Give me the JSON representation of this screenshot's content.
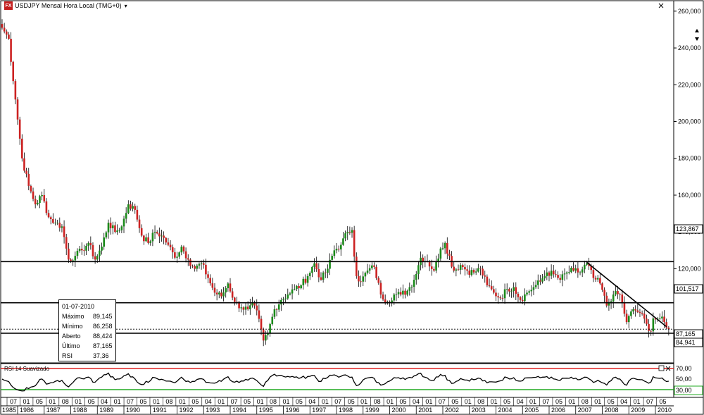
{
  "window": {
    "logo_text": "FX",
    "title": "USDJPY Mensal Hora Local (TMG+0)",
    "menu_arrow": "▾",
    "close_icon": "close-icon",
    "scroll_up_icon": "arrow-up-icon"
  },
  "infobox": {
    "date": "01-07-2010",
    "rows": [
      {
        "label": "Máximo",
        "value": "89,145"
      },
      {
        "label": "Mínimo",
        "value": "86,258"
      },
      {
        "label": "Aberto",
        "value": "88,424"
      },
      {
        "label": "Último",
        "value": "87,165"
      },
      {
        "label": "RSI",
        "value": "37,36"
      }
    ]
  },
  "rsi_panel": {
    "title": "RSI 14 Suavizado",
    "levels": [
      70,
      30
    ],
    "level_labels": [
      "70,00",
      "50,00",
      "30,00"
    ],
    "upper_color": "#dd2222",
    "lower_color": "#22aa22"
  },
  "price_labels": {
    "r1": "123,867",
    "r2": "101,517",
    "last": "87,165",
    "s1": "84,941"
  },
  "chart_data": {
    "type": "candlestick",
    "title": "USDJPY Mensal Hora Local (TMG+0)",
    "ylim": [
      70,
      263
    ],
    "yticks": [
      120,
      140,
      160,
      180,
      200,
      220,
      240,
      260
    ],
    "ytick_labels": [
      "120,000",
      "140,000",
      "160,000",
      "180,000",
      "200,000",
      "220,000",
      "240,000",
      "260,000"
    ],
    "grid": false,
    "horizontal_lines": [
      123.867,
      101.517,
      84.941
    ],
    "last_price_line": 87.165,
    "trendline": {
      "from": [
        "2007-06",
        123.5
      ],
      "to": [
        "2010-06",
        88.5
      ]
    },
    "x_start": "1985-06",
    "x_end": "2010-08",
    "x_years": [
      "1985",
      "1986",
      "1987",
      "1988",
      "1989",
      "1990",
      "1991",
      "1992",
      "1993",
      "1994",
      "1995",
      "1996",
      "1997",
      "1998",
      "1999",
      "2000",
      "2001",
      "2002",
      "2003",
      "2004",
      "2005",
      "2006",
      "2007",
      "2008",
      "2009",
      "2010"
    ],
    "x_month_ticks": [
      "07",
      "01",
      "05",
      "01",
      "08",
      "01",
      "05",
      "04",
      "01",
      "07",
      "05",
      "01",
      "08",
      "01",
      "05",
      "04",
      "01",
      "07",
      "05",
      "01",
      "08",
      "01",
      "05",
      "04",
      "01",
      "07",
      "05",
      "01",
      "08",
      "01",
      "05",
      "04",
      "01",
      "07",
      "05",
      "01",
      "08",
      "01",
      "05",
      "04",
      "01",
      "07",
      "05",
      "01",
      "08",
      "01",
      "05",
      "04",
      "01",
      "07",
      "05"
    ],
    "close_anchors": [
      [
        "1985-06",
        251
      ],
      [
        "1985-09",
        245
      ],
      [
        "1985-12",
        212
      ],
      [
        "1986-03",
        180
      ],
      [
        "1986-06",
        165
      ],
      [
        "1986-09",
        155
      ],
      [
        "1986-12",
        160
      ],
      [
        "1987-03",
        148
      ],
      [
        "1987-06",
        145
      ],
      [
        "1987-09",
        143
      ],
      [
        "1987-12",
        125
      ],
      [
        "1988-03",
        127
      ],
      [
        "1988-06",
        130
      ],
      [
        "1988-09",
        134
      ],
      [
        "1988-12",
        125
      ],
      [
        "1989-03",
        132
      ],
      [
        "1989-06",
        145
      ],
      [
        "1989-09",
        140
      ],
      [
        "1989-12",
        143
      ],
      [
        "1990-03",
        155
      ],
      [
        "1990-06",
        152
      ],
      [
        "1990-09",
        138
      ],
      [
        "1990-12",
        134
      ],
      [
        "1991-03",
        140
      ],
      [
        "1991-06",
        138
      ],
      [
        "1991-09",
        133
      ],
      [
        "1991-12",
        126
      ],
      [
        "1992-03",
        132
      ],
      [
        "1992-06",
        125
      ],
      [
        "1992-09",
        120
      ],
      [
        "1992-12",
        123
      ],
      [
        "1993-03",
        115
      ],
      [
        "1993-06",
        107
      ],
      [
        "1993-09",
        105
      ],
      [
        "1993-12",
        112
      ],
      [
        "1994-03",
        102
      ],
      [
        "1994-06",
        99
      ],
      [
        "1994-09",
        98
      ],
      [
        "1994-12",
        100
      ],
      [
        "1995-03",
        87
      ],
      [
        "1995-04",
        81
      ],
      [
        "1995-06",
        85
      ],
      [
        "1995-09",
        98
      ],
      [
        "1995-12",
        103
      ],
      [
        "1996-03",
        106
      ],
      [
        "1996-06",
        109
      ],
      [
        "1996-09",
        111
      ],
      [
        "1996-12",
        116
      ],
      [
        "1997-03",
        123
      ],
      [
        "1997-06",
        114
      ],
      [
        "1997-09",
        120
      ],
      [
        "1997-12",
        130
      ],
      [
        "1998-03",
        133
      ],
      [
        "1998-06",
        140
      ],
      [
        "1998-08",
        141
      ],
      [
        "1998-10",
        116
      ],
      [
        "1998-12",
        113
      ],
      [
        "1999-03",
        119
      ],
      [
        "1999-06",
        121
      ],
      [
        "1999-09",
        106
      ],
      [
        "1999-12",
        102
      ],
      [
        "2000-03",
        106
      ],
      [
        "2000-06",
        106
      ],
      [
        "2000-09",
        108
      ],
      [
        "2000-12",
        114
      ],
      [
        "2001-03",
        126
      ],
      [
        "2001-06",
        124
      ],
      [
        "2001-09",
        119
      ],
      [
        "2001-12",
        131
      ],
      [
        "2002-02",
        134
      ],
      [
        "2002-06",
        119
      ],
      [
        "2002-09",
        122
      ],
      [
        "2002-12",
        119
      ],
      [
        "2003-03",
        118
      ],
      [
        "2003-06",
        120
      ],
      [
        "2003-09",
        111
      ],
      [
        "2003-12",
        107
      ],
      [
        "2004-03",
        104
      ],
      [
        "2004-06",
        109
      ],
      [
        "2004-09",
        110
      ],
      [
        "2004-12",
        103
      ],
      [
        "2005-03",
        107
      ],
      [
        "2005-06",
        110
      ],
      [
        "2005-09",
        113
      ],
      [
        "2005-12",
        118
      ],
      [
        "2006-03",
        117
      ],
      [
        "2006-06",
        114
      ],
      [
        "2006-09",
        118
      ],
      [
        "2006-12",
        119
      ],
      [
        "2007-03",
        118
      ],
      [
        "2007-06",
        123
      ],
      [
        "2007-09",
        115
      ],
      [
        "2007-12",
        112
      ],
      [
        "2008-03",
        100
      ],
      [
        "2008-06",
        106
      ],
      [
        "2008-09",
        106
      ],
      [
        "2008-12",
        91
      ],
      [
        "2009-03",
        98
      ],
      [
        "2009-06",
        96
      ],
      [
        "2009-09",
        90
      ],
      [
        "2009-11",
        86
      ],
      [
        "2009-12",
        93
      ],
      [
        "2010-03",
        93
      ],
      [
        "2010-05",
        91
      ],
      [
        "2010-06",
        88
      ],
      [
        "2010-07",
        87.165
      ]
    ]
  }
}
